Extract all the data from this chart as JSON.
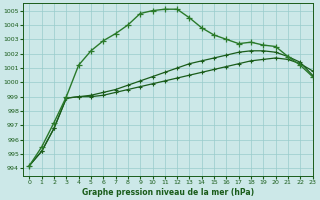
{
  "title": "Graphe pression niveau de la mer (hPa)",
  "xlim": [
    -0.5,
    23
  ],
  "ylim": [
    993.5,
    1005.5
  ],
  "yticks": [
    994,
    995,
    996,
    997,
    998,
    999,
    1000,
    1001,
    1002,
    1003,
    1004,
    1005
  ],
  "xticks": [
    0,
    1,
    2,
    3,
    4,
    5,
    6,
    7,
    8,
    9,
    10,
    11,
    12,
    13,
    14,
    15,
    16,
    17,
    18,
    19,
    20,
    21,
    22,
    23
  ],
  "bg_color": "#cce8e8",
  "grid_color": "#99cccc",
  "line_color_dark": "#1a5c1a",
  "line_color_med": "#2a7a2a",
  "series_peak": [
    994.2,
    995.5,
    997.2,
    999.0,
    1001.2,
    1002.2,
    1002.9,
    1003.4,
    1004.0,
    1004.8,
    1005.0,
    1005.1,
    1005.1,
    1004.5,
    1003.8,
    1003.3,
    1003.0,
    1002.7,
    1002.8,
    1002.6,
    1002.5,
    1001.8,
    1001.2,
    1000.4
  ],
  "series_flat1": [
    994.2,
    995.2,
    996.8,
    998.9,
    999.0,
    999.0,
    999.1,
    999.3,
    999.5,
    999.7,
    999.9,
    1000.1,
    1000.3,
    1000.5,
    1000.7,
    1000.9,
    1001.1,
    1001.3,
    1001.5,
    1001.6,
    1001.7,
    1001.6,
    1001.3,
    1000.8
  ],
  "series_flat2": [
    994.2,
    995.2,
    996.8,
    998.9,
    999.0,
    999.1,
    999.3,
    999.5,
    999.8,
    1000.1,
    1000.4,
    1000.7,
    1001.0,
    1001.3,
    1001.5,
    1001.7,
    1001.9,
    1002.1,
    1002.2,
    1002.2,
    1002.1,
    1001.8,
    1001.4,
    1000.5
  ]
}
